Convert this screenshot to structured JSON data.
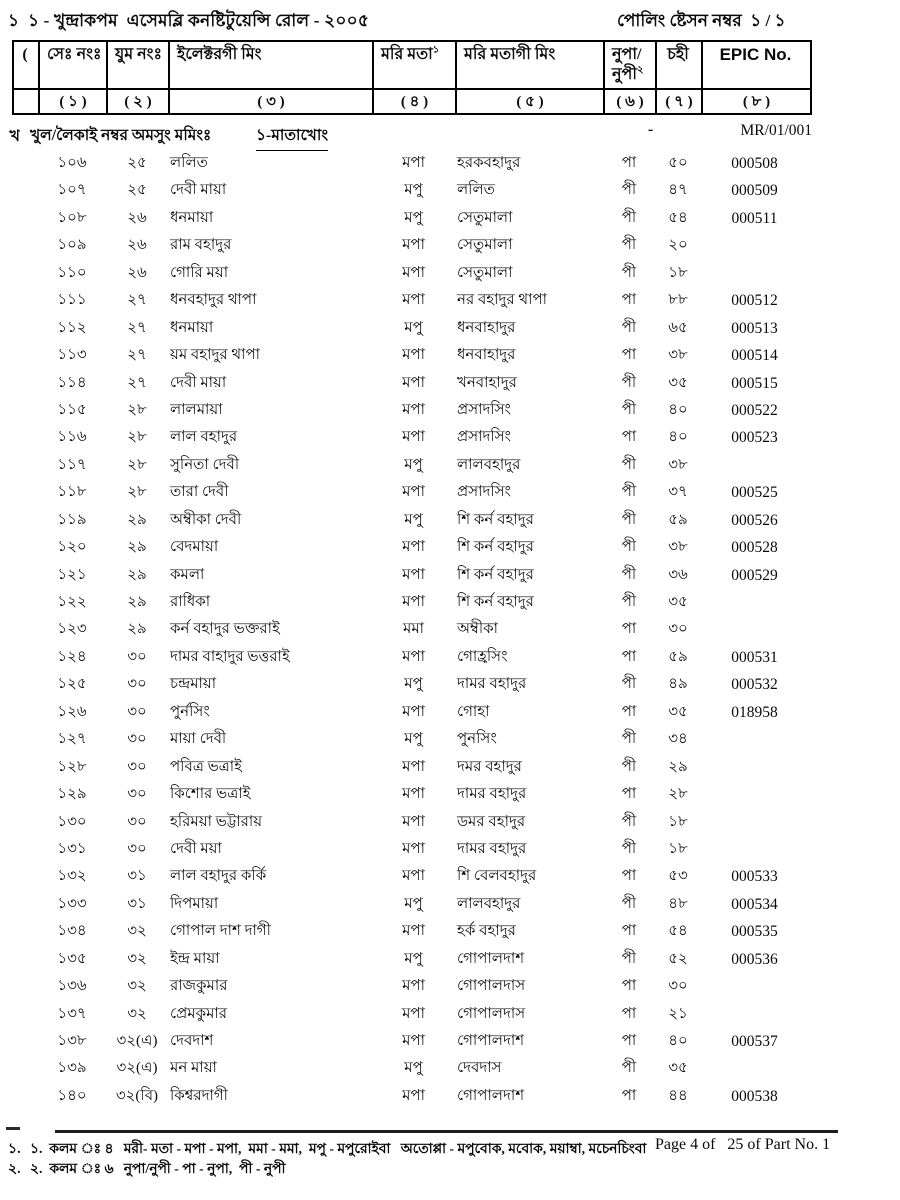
{
  "page": {
    "margin_serial_top": "১",
    "title": "১ - খুন্দ্রাকপম  এসেমব্লি কনষ্টিটুয়েন্সি রোল - ২০০৫",
    "polling_station": "পোলিং ষ্টেসন নম্বর  ১ / ১",
    "margin_partial_header": "(",
    "margin_partial_section": "খ"
  },
  "table": {
    "headers": [
      {
        "label": "",
        "num": ""
      },
      {
        "label": "সেঃ নংঃ",
        "num": "( ১ )"
      },
      {
        "label": "যুম নংঃ",
        "num": "( ২ )"
      },
      {
        "label": "ইলেক্টরগী মিং",
        "num": "( ৩ )"
      },
      {
        "label": "মরি মতা",
        "sup": "১",
        "num": "( ৪ )"
      },
      {
        "label": "মরি মতাগী মিং",
        "num": "( ৫ )"
      },
      {
        "label": "নুপা/ নুপী",
        "sup": "২",
        "num": "( ৬ )"
      },
      {
        "label": "চহী",
        "num": "( ৭ )"
      },
      {
        "label": "EPIC No.",
        "num": "( ৮ )"
      }
    ],
    "section": {
      "label": "খুল/লৈকাই নম্বর অমসুং মমিংঃ",
      "value": "১-মাতাখোং",
      "dash": "-",
      "code": "MR/01/001"
    },
    "rows": [
      [
        "১০৬",
        "২৫",
        "ললিত",
        "মপা",
        "হরকবহাদুর",
        "পা",
        "৫০",
        "000508"
      ],
      [
        "১০৭",
        "২৫",
        "দেবী মায়া",
        "মপু",
        "ললিত",
        "পী",
        "৪৭",
        "000509"
      ],
      [
        "১০৮",
        "২৬",
        "ধনমায়া",
        "মপু",
        "সেতুমালা",
        "পী",
        "৫৪",
        "000511"
      ],
      [
        "১০৯",
        "২৬",
        "রাম বহাদুর",
        "মপা",
        "সেতুমালা",
        "পী",
        "২০",
        ""
      ],
      [
        "১১০",
        "২৬",
        "গোরি ময়া",
        "মপা",
        "সেতুমালা",
        "পী",
        "১৮",
        ""
      ],
      [
        "১১১",
        "২৭",
        "ধনবহাদুর থাপা",
        "মপা",
        "নর বহাদুর থাপা",
        "পা",
        "৮৮",
        "000512"
      ],
      [
        "১১২",
        "২৭",
        "ধনমায়া",
        "মপু",
        "ধনবাহাদুর",
        "পী",
        "৬৫",
        "000513"
      ],
      [
        "১১৩",
        "২৭",
        "য়ম বহাদুর থাপা",
        "মপা",
        "ধনবাহাদুর",
        "পা",
        "৩৮",
        "000514"
      ],
      [
        "১১৪",
        "২৭",
        "দেবী মায়া",
        "মপা",
        "খনবাহাদুর",
        "পী",
        "৩৫",
        "000515"
      ],
      [
        "১১৫",
        "২৮",
        "লালমায়া",
        "মপা",
        "প্রসাদসিং",
        "পী",
        "৪০",
        "000522"
      ],
      [
        "১১৬",
        "২৮",
        "লাল বহাদুর",
        "মপা",
        "প্রসাদসিং",
        "পা",
        "৪০",
        "000523"
      ],
      [
        "১১৭",
        "২৮",
        "সুনিতা দেবী",
        "মপু",
        "লালবহাদুর",
        "পী",
        "৩৮",
        ""
      ],
      [
        "১১৮",
        "২৮",
        "তারা দেবী",
        "মপা",
        "প্রসাদসিং",
        "পী",
        "৩৭",
        "000525"
      ],
      [
        "১১৯",
        "২৯",
        "অম্বীকা দেবী",
        "মপু",
        "শি কর্ন বহাদুর",
        "পী",
        "৫৯",
        "000526"
      ],
      [
        "১২০",
        "২৯",
        "বেদমায়া",
        "মপা",
        "শি কর্ন বহাদুর",
        "পী",
        "৩৮",
        "000528"
      ],
      [
        "১২১",
        "২৯",
        "কমলা",
        "মপা",
        "শি কর্ন বহাদুর",
        "পী",
        "৩৬",
        "000529"
      ],
      [
        "১২২",
        "২৯",
        "রাধিকা",
        "মপা",
        "শি কর্ন বহাদুর",
        "পী",
        "৩৫",
        ""
      ],
      [
        "১২৩",
        "২৯",
        "কর্ন বহাদুর ভক্তরাই",
        "মমা",
        "অম্বীকা",
        "পা",
        "৩০",
        ""
      ],
      [
        "১২৪",
        "৩০",
        "দামর বাহাদুর ভত্তরাই",
        "মপা",
        "গোহ্রসিং",
        "পা",
        "৫৯",
        "000531"
      ],
      [
        "১২৫",
        "৩০",
        "চন্দ্রমায়া",
        "মপু",
        "দামর বহাদুর",
        "পী",
        "৪৯",
        "000532"
      ],
      [
        "১২৬",
        "৩০",
        "পুর্নসিং",
        "মপা",
        "গোহা",
        "পা",
        "৩৫",
        "018958"
      ],
      [
        "১২৭",
        "৩০",
        "মায়া দেবী",
        "মপু",
        "পুনসিং",
        "পী",
        "৩৪",
        ""
      ],
      [
        "১২৮",
        "৩০",
        "পবিত্র ভত্রাই",
        "মপা",
        "দমর বহাদুর",
        "পী",
        "২৯",
        ""
      ],
      [
        "১২৯",
        "৩০",
        "কিশোর ভত্রাই",
        "মপা",
        "দামর বহাদুর",
        "পা",
        "২৮",
        ""
      ],
      [
        "১৩০",
        "৩০",
        "হরিময়া ভট্টারায়",
        "মপা",
        "ডমর বহাদুর",
        "পী",
        "১৮",
        ""
      ],
      [
        "১৩১",
        "৩০",
        "দেবী ময়া",
        "মপা",
        "দামর বহাদুর",
        "পী",
        "১৮",
        ""
      ],
      [
        "১৩২",
        "৩১",
        "লাল বহাদুর কর্কি",
        "মপা",
        "শি বেলবহাদুর",
        "পা",
        "৫৩",
        "000533"
      ],
      [
        "১৩৩",
        "৩১",
        "দিপমায়া",
        "মপু",
        "লালবহাদুর",
        "পী",
        "৪৮",
        "000534"
      ],
      [
        "১৩৪",
        "৩২",
        "গোপাল দাশ দাগী",
        "মপা",
        "হর্ক বহাদুর",
        "পা",
        "৫৪",
        "000535"
      ],
      [
        "১৩৫",
        "৩২",
        "ইন্দ্র মায়া",
        "মপু",
        "গোপালদাশ",
        "পী",
        "৫২",
        "000536"
      ],
      [
        "১৩৬",
        "৩২",
        "রাজকুমার",
        "মপা",
        "গোপালদাস",
        "পা",
        "৩০",
        ""
      ],
      [
        "১৩৭",
        "৩২",
        "প্রেমকুমার",
        "মপা",
        "গোপালদাস",
        "পা",
        "২১",
        ""
      ],
      [
        "১৩৮",
        "৩২(এ)",
        "দেবদাশ",
        "মপা",
        "গোপালদাশ",
        "পা",
        "৪০",
        "000537"
      ],
      [
        "১৩৯",
        "৩২(এ)",
        "মন মায়া",
        "মপু",
        "দেবদাস",
        "পী",
        "৩৫",
        ""
      ],
      [
        "১৪০",
        "৩২(বি)",
        "কিশ্বরদাগী",
        "মপা",
        "গোপালদাশ",
        "পা",
        "৪৪",
        "000538"
      ]
    ]
  },
  "footer": {
    "margin_note1": "১.",
    "margin_note2": "২.",
    "note1": "১.  কলম ঃ ৪   মরী- মতা - মপা - মপা,  মমা - মমা,  মপু - মপুরোইবা   অতোপ্পা - মপুবোক, মবোক, ময়াম্বা, মচেনচিংবা",
    "note2": "২.  কলম ঃ ৬   নুপা/নুপী - পা - নুপা,  পী - নুপী",
    "page_info": "Page 4 of   25 of Part No. 1"
  }
}
